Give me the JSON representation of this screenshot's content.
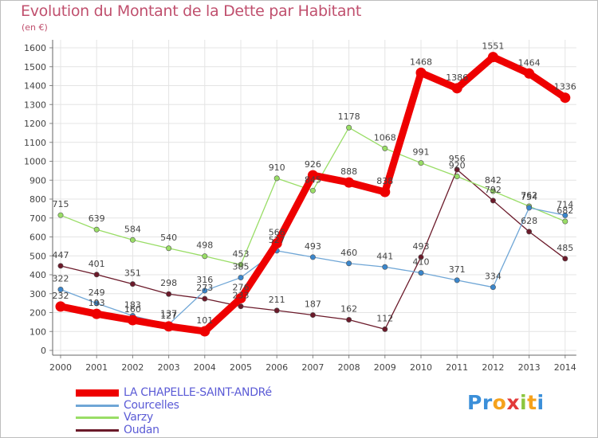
{
  "title": "Evolution du Montant de la Dette par Habitant",
  "subtitle": "(en €)",
  "logo": {
    "text": "Proxiti",
    "letters": [
      "P",
      "r",
      "o",
      "x",
      "i",
      "t",
      "i"
    ],
    "colors": [
      "#3b8fd9",
      "#3b8fd9",
      "#f5a21c",
      "#e23a3a",
      "#8cc63f",
      "#f5a21c",
      "#3b8fd9"
    ]
  },
  "chart_data": {
    "type": "line",
    "x": [
      "2000",
      "2001",
      "2002",
      "2003",
      "2004",
      "2005",
      "2006",
      "2007",
      "2008",
      "2009",
      "2010",
      "2011",
      "2012",
      "2013",
      "2014"
    ],
    "ylim": [
      0,
      1600
    ],
    "yticks": [
      0,
      100,
      200,
      300,
      400,
      500,
      600,
      700,
      800,
      900,
      1000,
      1100,
      1200,
      1300,
      1400,
      1500,
      1600
    ],
    "grid": true,
    "legend_position": "bottom-left",
    "series": [
      {
        "name": "Oudan",
        "color": "#6b1a2a",
        "point_fill": "#6b1a2a",
        "values": [
          447,
          401,
          351,
          298,
          273,
          233,
          211,
          187,
          162,
          112,
          493,
          956,
          792,
          628,
          485
        ],
        "labels": [
          "447",
          "401",
          "351",
          "298",
          "273",
          "233",
          "211",
          "187",
          "162",
          "112",
          "493",
          "956",
          "792",
          "628",
          "485"
        ]
      },
      {
        "name": "Varzy",
        "color": "#99dd66",
        "point_fill": "#99dd66",
        "values": [
          715,
          639,
          584,
          540,
          498,
          453,
          910,
          845,
          1178,
          1068,
          991,
          920,
          842,
          762,
          682
        ],
        "labels": [
          "715",
          "639",
          "584",
          "540",
          "498",
          "453",
          "910",
          "845",
          "1178",
          "1068",
          "991",
          "920",
          "842",
          "762",
          "682"
        ]
      },
      {
        "name": "Courcelles",
        "color": "#6fa6d6",
        "point_fill": "#3a86cc",
        "values": [
          322,
          249,
          183,
          137,
          316,
          385,
          527,
          493,
          460,
          441,
          410,
          371,
          334,
          754,
          714
        ],
        "labels": [
          "322",
          "249",
          "183",
          "137",
          "316",
          "385",
          "527",
          "493",
          "460",
          "441",
          "410",
          "371",
          "334",
          "754",
          "714"
        ]
      },
      {
        "name": "LA CHAPELLE-SAINT-ANDRé",
        "color": "#ee0000",
        "point_fill": "#ee0000",
        "values": [
          232,
          193,
          160,
          127,
          101,
          276,
          566,
          926,
          888,
          838,
          1468,
          1386,
          1551,
          1464,
          1336
        ],
        "labels": [
          "232",
          "193",
          "160",
          "127",
          "101",
          "276",
          "566",
          "926",
          "888",
          "838",
          "1468",
          "1386",
          "1551",
          "1464",
          "1336"
        ]
      }
    ]
  },
  "legend": [
    {
      "label": "LA CHAPELLE-SAINT-ANDRé",
      "color": "#ee0000",
      "thick": true
    },
    {
      "label": "Courcelles",
      "color": "#6fa6d6",
      "thick": false
    },
    {
      "label": "Varzy",
      "color": "#99dd66",
      "thick": false
    },
    {
      "label": "Oudan",
      "color": "#6b1a2a",
      "thick": false
    }
  ]
}
